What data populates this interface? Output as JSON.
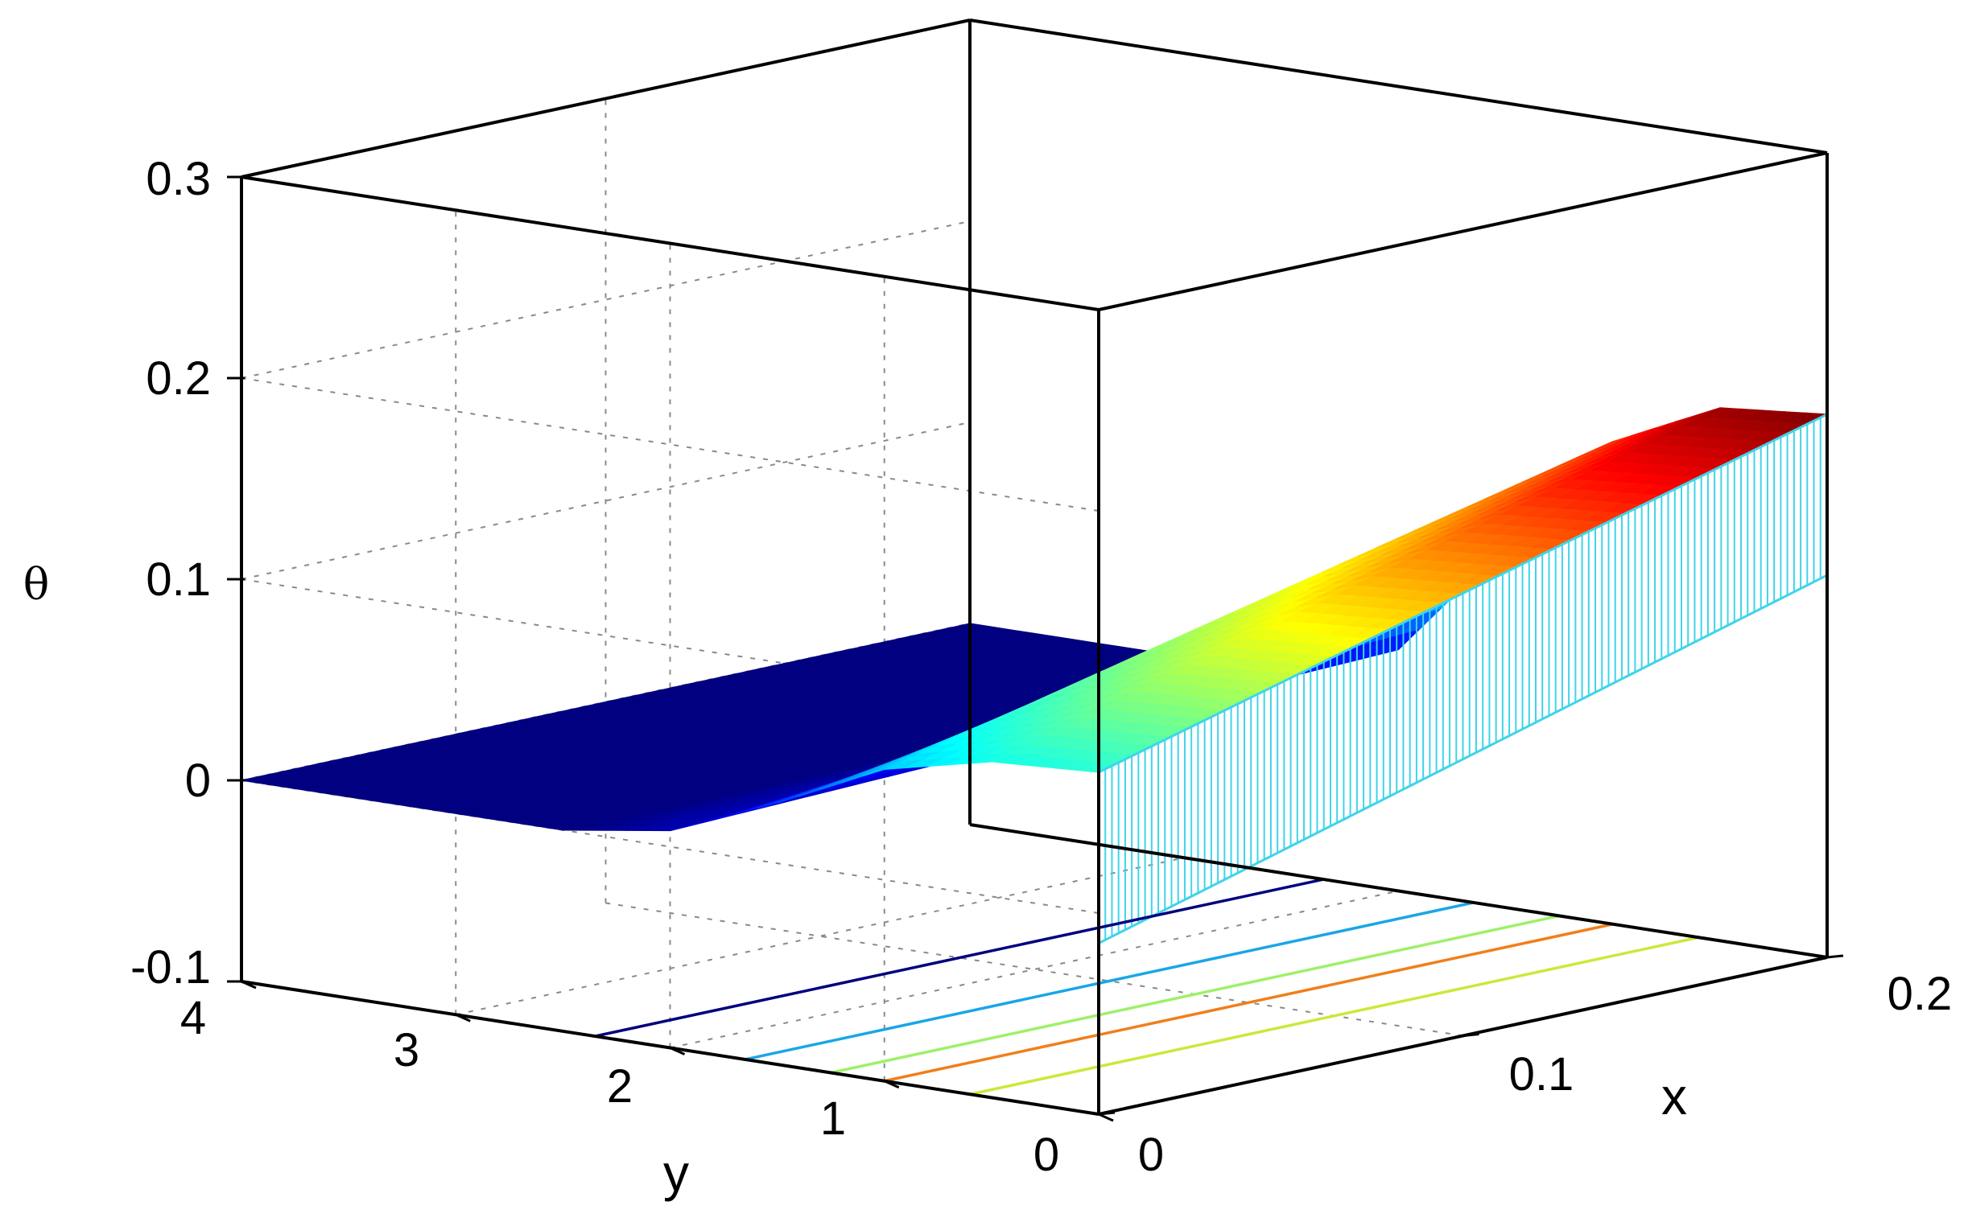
{
  "chart_data": {
    "type": "surface",
    "title": "",
    "xlabel": "x",
    "ylabel": "y",
    "zlabel": "θ",
    "xlim": [
      0,
      0.2
    ],
    "ylim": [
      0,
      4
    ],
    "zlim": [
      -0.1,
      0.3
    ],
    "xticks": [
      "0",
      "0.1",
      "0.2"
    ],
    "yticks": [
      "0",
      "1",
      "2",
      "3",
      "4"
    ],
    "zticks": [
      "-0.1",
      "0",
      "0.1",
      "0.2",
      "0.3"
    ],
    "grid": true,
    "colormap": "jet",
    "surface_profile": {
      "description_free": true,
      "y": [
        0,
        0.5,
        1.0,
        1.5,
        2.0,
        2.5,
        3.0,
        3.5,
        4.0
      ],
      "theta_at_x0": [
        0.07,
        0.067,
        0.055,
        0.03,
        0.008,
        0.0,
        0.0,
        0.0,
        0.0
      ],
      "theta_at_x0_2": [
        0.17,
        0.165,
        0.14,
        0.08,
        0.02,
        0.0,
        0.0,
        0.0,
        0.0
      ]
    },
    "front_wall": {
      "y": 0,
      "theta_min_at_x0": -0.015,
      "theta_min_at_x0_2": 0.09,
      "color": "#3fd4ea"
    },
    "contour_lines": [
      {
        "color": "#00007f",
        "start": [
          0.0,
          2.35
        ],
        "end": [
          0.2,
          2.35
        ]
      },
      {
        "color": "#1aa6e6",
        "start": [
          0.0,
          1.65
        ],
        "end": [
          0.2,
          1.65
        ]
      },
      {
        "color": "#9ef06a",
        "start": [
          0.0,
          1.25
        ],
        "end": [
          0.2,
          1.25
        ]
      },
      {
        "color": "#f07f1a",
        "start": [
          0.0,
          1.0
        ],
        "end": [
          0.2,
          1.0
        ]
      },
      {
        "color": "#c8ea3a",
        "start": [
          0.0,
          0.6
        ],
        "end": [
          0.2,
          0.6
        ]
      }
    ]
  }
}
